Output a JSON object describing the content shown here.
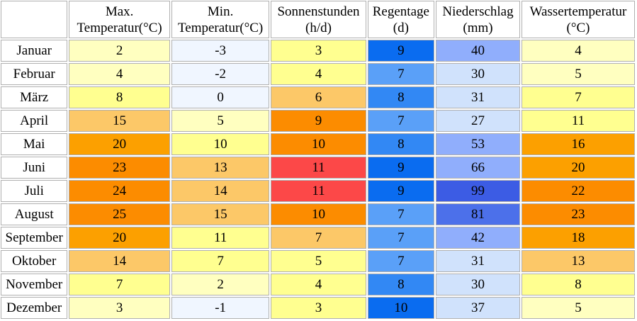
{
  "columns": [
    {
      "line1": "Max.",
      "line2": "Temperatur(°C)"
    },
    {
      "line1": "Min.",
      "line2": "Temperatur(°C)"
    },
    {
      "line1": "Sonnenstunden",
      "line2": "(h/d)"
    },
    {
      "line1": "Regentage",
      "line2": "(d)"
    },
    {
      "line1": "Niederschlag",
      "line2": "(mm)"
    },
    {
      "line1": "Wassertemperatur",
      "line2": "(°C)"
    }
  ],
  "rows": [
    {
      "month": "Januar",
      "max": "2",
      "min": "-3",
      "sun": "3",
      "rain": "9",
      "prec": "40",
      "water": "4",
      "colors": {
        "max": "#ffffc0",
        "min": "#f0f6ff",
        "sun": "#ffff90",
        "rain": "#0a6cf0",
        "prec": "#90aefc",
        "water": "#ffffc0"
      }
    },
    {
      "month": "Februar",
      "max": "4",
      "min": "-2",
      "sun": "4",
      "rain": "7",
      "prec": "30",
      "water": "5",
      "colors": {
        "max": "#ffffc0",
        "min": "#f0f6ff",
        "sun": "#ffff90",
        "rain": "#5aa0f8",
        "prec": "#d0e2fc",
        "water": "#ffffc0"
      }
    },
    {
      "month": "März",
      "max": "8",
      "min": "0",
      "sun": "6",
      "rain": "8",
      "prec": "31",
      "water": "7",
      "colors": {
        "max": "#ffff90",
        "min": "#f0f6ff",
        "sun": "#fcc868",
        "rain": "#3288f4",
        "prec": "#d0e2fc",
        "water": "#ffff90"
      }
    },
    {
      "month": "April",
      "max": "15",
      "min": "5",
      "sun": "9",
      "rain": "7",
      "prec": "27",
      "water": "11",
      "colors": {
        "max": "#fcc868",
        "min": "#ffffc0",
        "sun": "#fc8c00",
        "rain": "#5aa0f8",
        "prec": "#d0e2fc",
        "water": "#ffff90"
      }
    },
    {
      "month": "Mai",
      "max": "20",
      "min": "10",
      "sun": "10",
      "rain": "8",
      "prec": "53",
      "water": "16",
      "colors": {
        "max": "#fca000",
        "min": "#ffff90",
        "sun": "#fc8c00",
        "rain": "#3288f4",
        "prec": "#90aefc",
        "water": "#fca000"
      }
    },
    {
      "month": "Juni",
      "max": "23",
      "min": "13",
      "sun": "11",
      "rain": "9",
      "prec": "66",
      "water": "20",
      "colors": {
        "max": "#fc8c00",
        "min": "#fcc868",
        "sun": "#fc4848",
        "rain": "#0a6cf0",
        "prec": "#90aefc",
        "water": "#fca000"
      }
    },
    {
      "month": "Juli",
      "max": "24",
      "min": "14",
      "sun": "11",
      "rain": "9",
      "prec": "99",
      "water": "22",
      "colors": {
        "max": "#fc8c00",
        "min": "#fcc868",
        "sun": "#fc4848",
        "rain": "#0a6cf0",
        "prec": "#3c5ce4",
        "water": "#fc8c00"
      }
    },
    {
      "month": "August",
      "max": "25",
      "min": "15",
      "sun": "10",
      "rain": "7",
      "prec": "81",
      "water": "23",
      "colors": {
        "max": "#fc8c00",
        "min": "#fcc868",
        "sun": "#fc8c00",
        "rain": "#5aa0f8",
        "prec": "#4c70ea",
        "water": "#fc8c00"
      }
    },
    {
      "month": "September",
      "max": "20",
      "min": "11",
      "sun": "7",
      "rain": "7",
      "prec": "42",
      "water": "18",
      "colors": {
        "max": "#fca000",
        "min": "#ffff90",
        "sun": "#fcc868",
        "rain": "#5aa0f8",
        "prec": "#90aefc",
        "water": "#fca000"
      }
    },
    {
      "month": "Oktober",
      "max": "14",
      "min": "7",
      "sun": "5",
      "rain": "7",
      "prec": "31",
      "water": "13",
      "colors": {
        "max": "#fcc868",
        "min": "#ffff90",
        "sun": "#ffff90",
        "rain": "#5aa0f8",
        "prec": "#d0e2fc",
        "water": "#fcc868"
      }
    },
    {
      "month": "November",
      "max": "7",
      "min": "2",
      "sun": "4",
      "rain": "8",
      "prec": "30",
      "water": "8",
      "colors": {
        "max": "#ffff90",
        "min": "#ffffc0",
        "sun": "#ffff90",
        "rain": "#3288f4",
        "prec": "#d0e2fc",
        "water": "#ffff90"
      }
    },
    {
      "month": "Dezember",
      "max": "3",
      "min": "-1",
      "sun": "3",
      "rain": "10",
      "prec": "37",
      "water": "5",
      "colors": {
        "max": "#ffffc0",
        "min": "#f0f6ff",
        "sun": "#ffff90",
        "rain": "#0a6cf0",
        "prec": "#d0e2fc",
        "water": "#ffffc0"
      }
    }
  ]
}
